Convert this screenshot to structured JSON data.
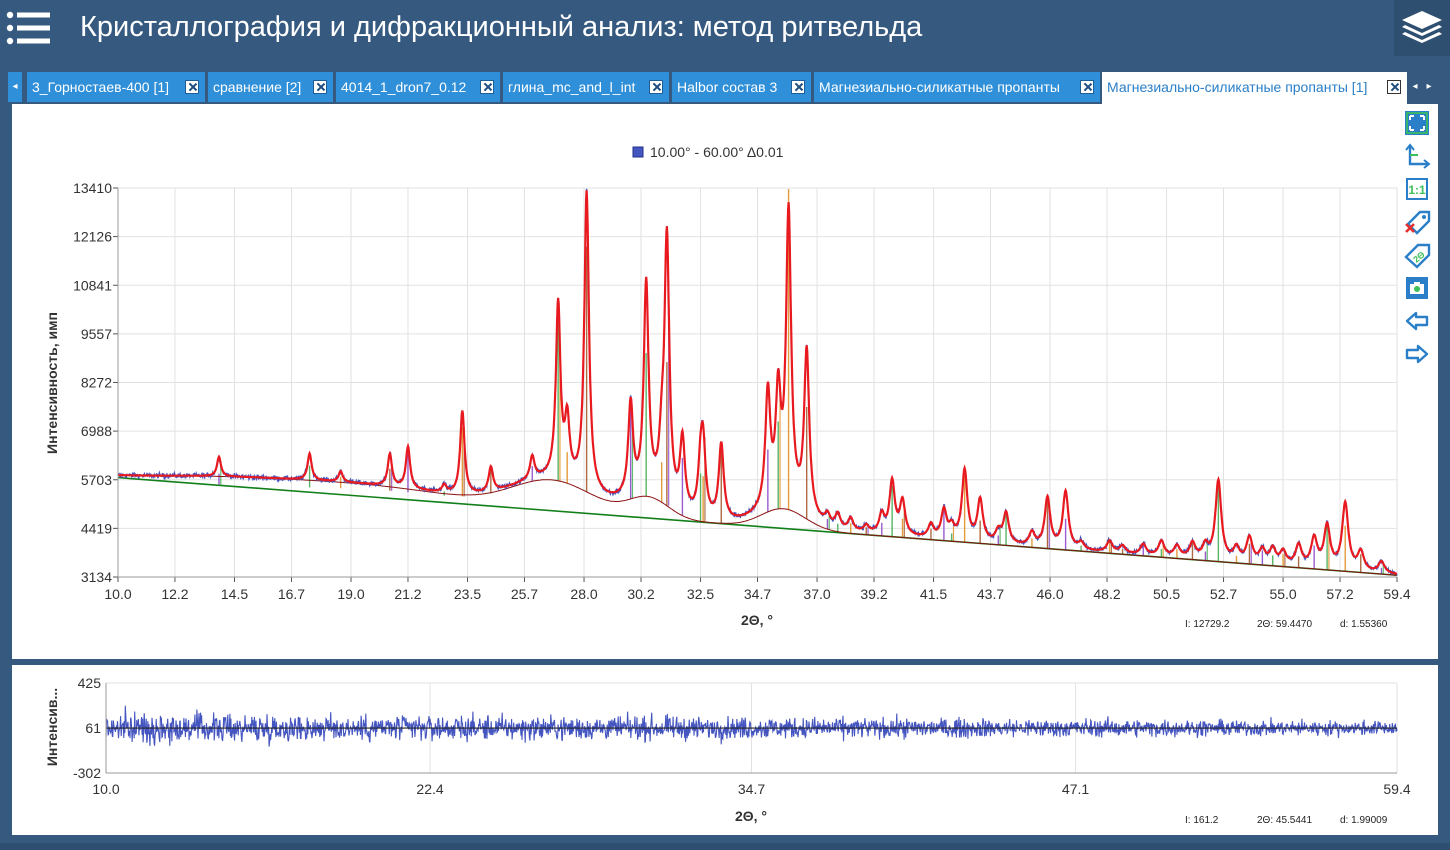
{
  "header": {
    "title": "Кристаллография и дифракционный анализ: метод ритвельда",
    "menu_icon": "list-icon",
    "layers_icon": "layers-icon"
  },
  "tabs": [
    {
      "label": "3_Горностаев-400 [1]",
      "active": false
    },
    {
      "label": "сравнение [2]",
      "active": false
    },
    {
      "label": "4014_1_dron7_0.12",
      "active": false
    },
    {
      "label": "глина_mc_and_l_int",
      "active": false
    },
    {
      "label": "Halbor состав 3",
      "active": false
    },
    {
      "label": "Магнезиально-силикатные пропанты",
      "active": false
    },
    {
      "label": "Магнезиально-силикатные пропанты [1]",
      "active": true
    }
  ],
  "toolbar": [
    {
      "name": "fit-view-icon"
    },
    {
      "name": "axes-icon"
    },
    {
      "name": "scale-1-1-icon"
    },
    {
      "name": "remove-labels-icon"
    },
    {
      "name": "2theta-label-icon"
    },
    {
      "name": "screenshot-icon"
    },
    {
      "name": "arrow-left-icon"
    },
    {
      "name": "arrow-right-icon"
    }
  ],
  "colors": {
    "observed": "#4455c0",
    "calculated": "#e8191f",
    "background": "#12801a",
    "difference": "#4455c0",
    "grid": "#e2e2e2",
    "tick_bars": [
      "#8a3fc8",
      "#3aa84a",
      "#e08a1a",
      "#a04f20"
    ]
  },
  "chart_data": [
    {
      "id": "main",
      "type": "line",
      "legend": "10.00° - 60.00° Δ0.01",
      "xlabel": "2Θ, °",
      "ylabel": "Интенсивность, имп",
      "xlim": [
        10.0,
        59.4
      ],
      "ylim": [
        3134,
        13410
      ],
      "x_ticks": [
        "10.0",
        "12.2",
        "14.5",
        "16.7",
        "19.0",
        "21.2",
        "23.5",
        "25.7",
        "28.0",
        "30.2",
        "32.5",
        "34.7",
        "37.0",
        "39.2",
        "41.5",
        "43.7",
        "46.0",
        "48.2",
        "50.5",
        "52.7",
        "55.0",
        "57.2",
        "59.4"
      ],
      "y_ticks": [
        "3134",
        "4419",
        "5703",
        "6988",
        "8272",
        "9557",
        "10841",
        "12126",
        "13410"
      ],
      "grid": true,
      "background_line": {
        "x": [
          10.0,
          59.4
        ],
        "y": [
          5760,
          3180
        ]
      },
      "amorphous_humps": [
        {
          "center": 26.8,
          "width": 2.2,
          "height": 780
        },
        {
          "center": 30.5,
          "width": 1.1,
          "height": 520
        },
        {
          "center": 35.7,
          "width": 1.2,
          "height": 520
        },
        {
          "center": 20.5,
          "width": 4.5,
          "height": 200
        }
      ],
      "peaks": [
        {
          "x": 13.9,
          "i": 520
        },
        {
          "x": 17.4,
          "i": 700
        },
        {
          "x": 18.6,
          "i": 280
        },
        {
          "x": 20.5,
          "i": 850
        },
        {
          "x": 21.2,
          "i": 1100
        },
        {
          "x": 22.6,
          "i": 200
        },
        {
          "x": 23.3,
          "i": 2200
        },
        {
          "x": 24.4,
          "i": 650
        },
        {
          "x": 26.0,
          "i": 600
        },
        {
          "x": 27.0,
          "i": 4600
        },
        {
          "x": 27.35,
          "i": 1500
        },
        {
          "x": 28.1,
          "i": 7850
        },
        {
          "x": 29.8,
          "i": 2400
        },
        {
          "x": 30.4,
          "i": 5500
        },
        {
          "x": 31.0,
          "i": 1100
        },
        {
          "x": 31.2,
          "i": 6900
        },
        {
          "x": 31.8,
          "i": 1850
        },
        {
          "x": 32.5,
          "i": 1150
        },
        {
          "x": 32.6,
          "i": 1750
        },
        {
          "x": 33.3,
          "i": 2000
        },
        {
          "x": 35.1,
          "i": 3000
        },
        {
          "x": 35.5,
          "i": 2800
        },
        {
          "x": 35.9,
          "i": 7700
        },
        {
          "x": 36.6,
          "i": 4300
        },
        {
          "x": 37.4,
          "i": 280
        },
        {
          "x": 37.8,
          "i": 380
        },
        {
          "x": 38.3,
          "i": 330
        },
        {
          "x": 38.9,
          "i": 180
        },
        {
          "x": 39.5,
          "i": 500
        },
        {
          "x": 39.9,
          "i": 1400
        },
        {
          "x": 40.3,
          "i": 900
        },
        {
          "x": 41.4,
          "i": 350
        },
        {
          "x": 41.9,
          "i": 750
        },
        {
          "x": 42.2,
          "i": 300
        },
        {
          "x": 42.7,
          "i": 1850
        },
        {
          "x": 43.3,
          "i": 1100
        },
        {
          "x": 44.0,
          "i": 300
        },
        {
          "x": 44.3,
          "i": 800
        },
        {
          "x": 45.3,
          "i": 350
        },
        {
          "x": 45.9,
          "i": 1300
        },
        {
          "x": 46.6,
          "i": 1500
        },
        {
          "x": 47.2,
          "i": 180
        },
        {
          "x": 48.3,
          "i": 300
        },
        {
          "x": 48.8,
          "i": 200
        },
        {
          "x": 49.6,
          "i": 280
        },
        {
          "x": 50.3,
          "i": 400
        },
        {
          "x": 50.9,
          "i": 300
        },
        {
          "x": 51.5,
          "i": 400
        },
        {
          "x": 52.0,
          "i": 350
        },
        {
          "x": 52.5,
          "i": 2100
        },
        {
          "x": 53.2,
          "i": 350
        },
        {
          "x": 53.7,
          "i": 650
        },
        {
          "x": 54.2,
          "i": 350
        },
        {
          "x": 54.6,
          "i": 400
        },
        {
          "x": 55.0,
          "i": 350
        },
        {
          "x": 55.6,
          "i": 550
        },
        {
          "x": 56.2,
          "i": 750
        },
        {
          "x": 56.7,
          "i": 1100
        },
        {
          "x": 57.4,
          "i": 1750
        },
        {
          "x": 58.0,
          "i": 500
        },
        {
          "x": 58.8,
          "i": 300
        }
      ],
      "readout": {
        "i": "I: 12729.2",
        "two_theta": "2Θ: 59.4470",
        "d": "d: 1.55360"
      }
    },
    {
      "id": "difference",
      "type": "line",
      "xlabel": "2Θ, °",
      "ylabel": "Интенсив...",
      "xlim": [
        10.0,
        59.4
      ],
      "ylim": [
        -302,
        425
      ],
      "x_ticks": [
        "10.0",
        "22.4",
        "34.7",
        "47.1",
        "59.4"
      ],
      "y_ticks": [
        "-302",
        "61",
        "425"
      ],
      "zero_line": 61,
      "noise_amplitude": 85,
      "readout": {
        "i": "I: 161.2",
        "two_theta": "2Θ: 45.5441",
        "d": "d: 1.99009"
      }
    }
  ]
}
